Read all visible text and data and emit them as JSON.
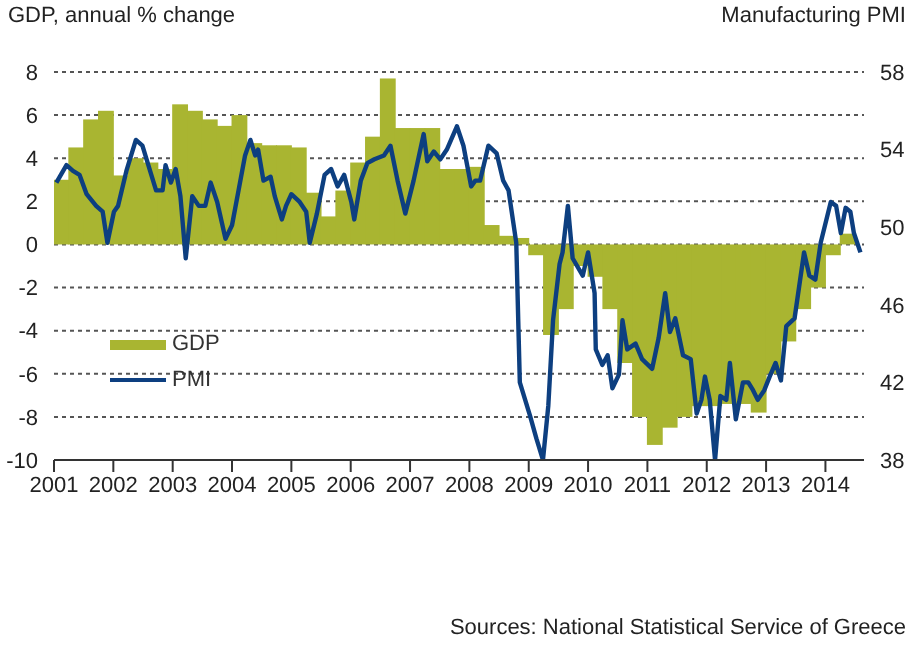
{
  "chart_data": {
    "type": "bar",
    "ylabel": "GDP, annual % change",
    "y2label": "Manufacturing PMI",
    "annotations": [
      "Sources: National Statistical Service of Greece"
    ],
    "xlim": [
      2001,
      2014.65
    ],
    "xticks": [
      2001,
      2002,
      2003,
      2004,
      2005,
      2006,
      2007,
      2008,
      2009,
      2010,
      2011,
      2012,
      2013,
      2014
    ],
    "ylim": [
      -10,
      8
    ],
    "yticks": [
      -10,
      -8,
      -6,
      -4,
      -2,
      0,
      2,
      4,
      6,
      8
    ],
    "y2lim": [
      38,
      58
    ],
    "y2ticks": [
      38,
      42,
      46,
      50,
      54,
      58
    ],
    "grid": "y",
    "legend": "left",
    "series": [
      {
        "name": "GDP",
        "color": "#a9b531",
        "x": [
          2001.125,
          2001.375,
          2001.625,
          2001.875,
          2002.125,
          2002.375,
          2002.625,
          2002.875,
          2003.125,
          2003.375,
          2003.625,
          2003.875,
          2004.125,
          2004.375,
          2004.625,
          2004.875,
          2005.125,
          2005.375,
          2005.625,
          2005.875,
          2006.125,
          2006.375,
          2006.625,
          2006.875,
          2007.125,
          2007.375,
          2007.625,
          2007.875,
          2008.125,
          2008.375,
          2008.625,
          2008.875,
          2009.125,
          2009.375,
          2009.625,
          2009.875,
          2010.125,
          2010.375,
          2010.625,
          2010.875,
          2011.125,
          2011.375,
          2011.625,
          2011.875,
          2012.125,
          2012.375,
          2012.625,
          2012.875,
          2013.125,
          2013.375,
          2013.625,
          2013.875,
          2014.125,
          2014.375
        ],
        "values": [
          3.0,
          4.5,
          5.8,
          6.2,
          3.2,
          4.0,
          3.8,
          3.5,
          6.5,
          6.2,
          5.8,
          5.5,
          6.0,
          4.7,
          4.6,
          4.6,
          4.5,
          2.4,
          1.3,
          2.5,
          3.8,
          5.0,
          7.7,
          5.4,
          5.4,
          5.4,
          3.5,
          3.5,
          3.6,
          0.9,
          0.4,
          0.3,
          -0.5,
          -4.2,
          -3.0,
          -1.0,
          -1.5,
          -3.0,
          -5.5,
          -8.0,
          -9.3,
          -8.5,
          -8.0,
          -7.5,
          -7.5,
          -7.4,
          -7.4,
          -7.8,
          -6.0,
          -4.5,
          -3.0,
          -2.0,
          -0.5,
          0.5
        ]
      },
      {
        "name": "PMI",
        "type": "line",
        "axis": "y2",
        "color": "#0d3f80",
        "x": [
          2001.04,
          2001.21,
          2001.32,
          2001.43,
          2001.55,
          2001.71,
          2001.82,
          2001.9,
          2002.01,
          2002.08,
          2002.22,
          2002.38,
          2002.49,
          2002.64,
          2002.72,
          2002.83,
          2002.88,
          2002.97,
          2003.05,
          2003.13,
          2003.22,
          2003.33,
          2003.44,
          2003.55,
          2003.64,
          2003.75,
          2003.89,
          2004.0,
          2004.11,
          2004.22,
          2004.31,
          2004.39,
          2004.44,
          2004.53,
          2004.65,
          2004.72,
          2004.84,
          2004.91,
          2005.0,
          2005.14,
          2005.25,
          2005.31,
          2005.43,
          2005.56,
          2005.67,
          2005.78,
          2005.89,
          2006.01,
          2006.06,
          2006.17,
          2006.28,
          2006.4,
          2006.56,
          2006.67,
          2006.79,
          2006.92,
          2007.06,
          2007.23,
          2007.29,
          2007.4,
          2007.51,
          2007.62,
          2007.79,
          2007.9,
          2008.03,
          2008.1,
          2008.18,
          2008.32,
          2008.46,
          2008.57,
          2008.66,
          2008.79,
          2008.85,
          2009.02,
          2009.13,
          2009.24,
          2009.33,
          2009.41,
          2009.52,
          2009.57,
          2009.66,
          2009.74,
          2009.91,
          2010.0,
          2010.11,
          2010.13,
          2010.24,
          2010.33,
          2010.41,
          2010.52,
          2010.58,
          2010.66,
          2010.8,
          2010.91,
          2011.08,
          2011.19,
          2011.3,
          2011.38,
          2011.47,
          2011.6,
          2011.73,
          2011.83,
          2011.91,
          2011.97,
          2012.05,
          2012.14,
          2012.23,
          2012.33,
          2012.39,
          2012.49,
          2012.61,
          2012.7,
          2012.78,
          2012.86,
          2012.97,
          2013.06,
          2013.16,
          2013.25,
          2013.34,
          2013.48,
          2013.64,
          2013.73,
          2013.83,
          2013.92,
          2014.09,
          2014.18,
          2014.26,
          2014.34,
          2014.42,
          2014.48,
          2014.59
        ],
        "values": [
          52.3,
          53.2,
          52.9,
          52.7,
          51.7,
          51.1,
          50.8,
          49.2,
          50.8,
          51.1,
          52.9,
          54.5,
          54.2,
          52.7,
          51.9,
          51.9,
          53.2,
          52.3,
          53.0,
          51.6,
          48.4,
          51.6,
          51.1,
          51.1,
          52.3,
          51.3,
          49.4,
          50.1,
          51.9,
          53.7,
          54.5,
          53.7,
          54.0,
          52.4,
          52.6,
          51.6,
          50.4,
          51.1,
          51.7,
          51.3,
          50.8,
          49.2,
          50.7,
          52.7,
          53.0,
          52.1,
          52.7,
          51.3,
          50.4,
          52.4,
          53.3,
          53.5,
          53.7,
          54.2,
          52.4,
          50.7,
          52.4,
          54.8,
          53.4,
          53.9,
          53.5,
          54.0,
          55.2,
          54.2,
          52.1,
          52.4,
          52.4,
          54.2,
          53.8,
          52.4,
          51.9,
          49.2,
          42.0,
          40.3,
          39.1,
          38.0,
          40.8,
          45.2,
          48.1,
          48.7,
          51.1,
          48.4,
          47.5,
          48.7,
          46.6,
          43.7,
          42.9,
          43.4,
          41.7,
          42.4,
          45.2,
          43.7,
          44.0,
          43.2,
          42.7,
          44.3,
          46.6,
          44.6,
          45.3,
          43.4,
          43.2,
          40.4,
          41.1,
          42.3,
          41.1,
          38.0,
          41.3,
          41.1,
          43.0,
          40.1,
          42.0,
          42.0,
          41.6,
          41.1,
          41.6,
          42.3,
          43.0,
          42.1,
          44.9,
          45.3,
          48.7,
          47.5,
          47.3,
          49.2,
          51.3,
          51.1,
          49.7,
          51.0,
          50.8,
          49.7,
          48.7
        ]
      }
    ]
  }
}
